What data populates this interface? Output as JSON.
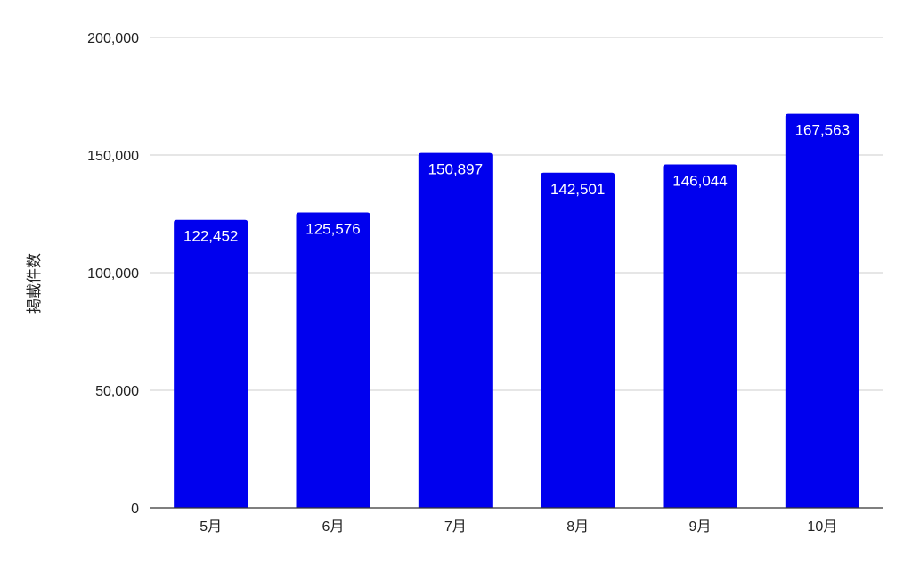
{
  "chart_data": {
    "type": "bar",
    "categories": [
      "5月",
      "6月",
      "7月",
      "8月",
      "9月",
      "10月"
    ],
    "values": [
      122452,
      125576,
      150897,
      142501,
      146044,
      167563
    ],
    "data_labels": [
      "122,452",
      "125,576",
      "150,897",
      "142,501",
      "146,044",
      "167,563"
    ],
    "ylabel": "掲載件数",
    "xlabel": "",
    "ylim": [
      0,
      200000
    ],
    "yticks": [
      0,
      50000,
      100000,
      150000,
      200000
    ],
    "ytick_labels": [
      "0",
      "50,000",
      "100,000",
      "150,000",
      "200,000"
    ],
    "grid": true,
    "legend": "none",
    "bar_color": "#0000ee"
  }
}
